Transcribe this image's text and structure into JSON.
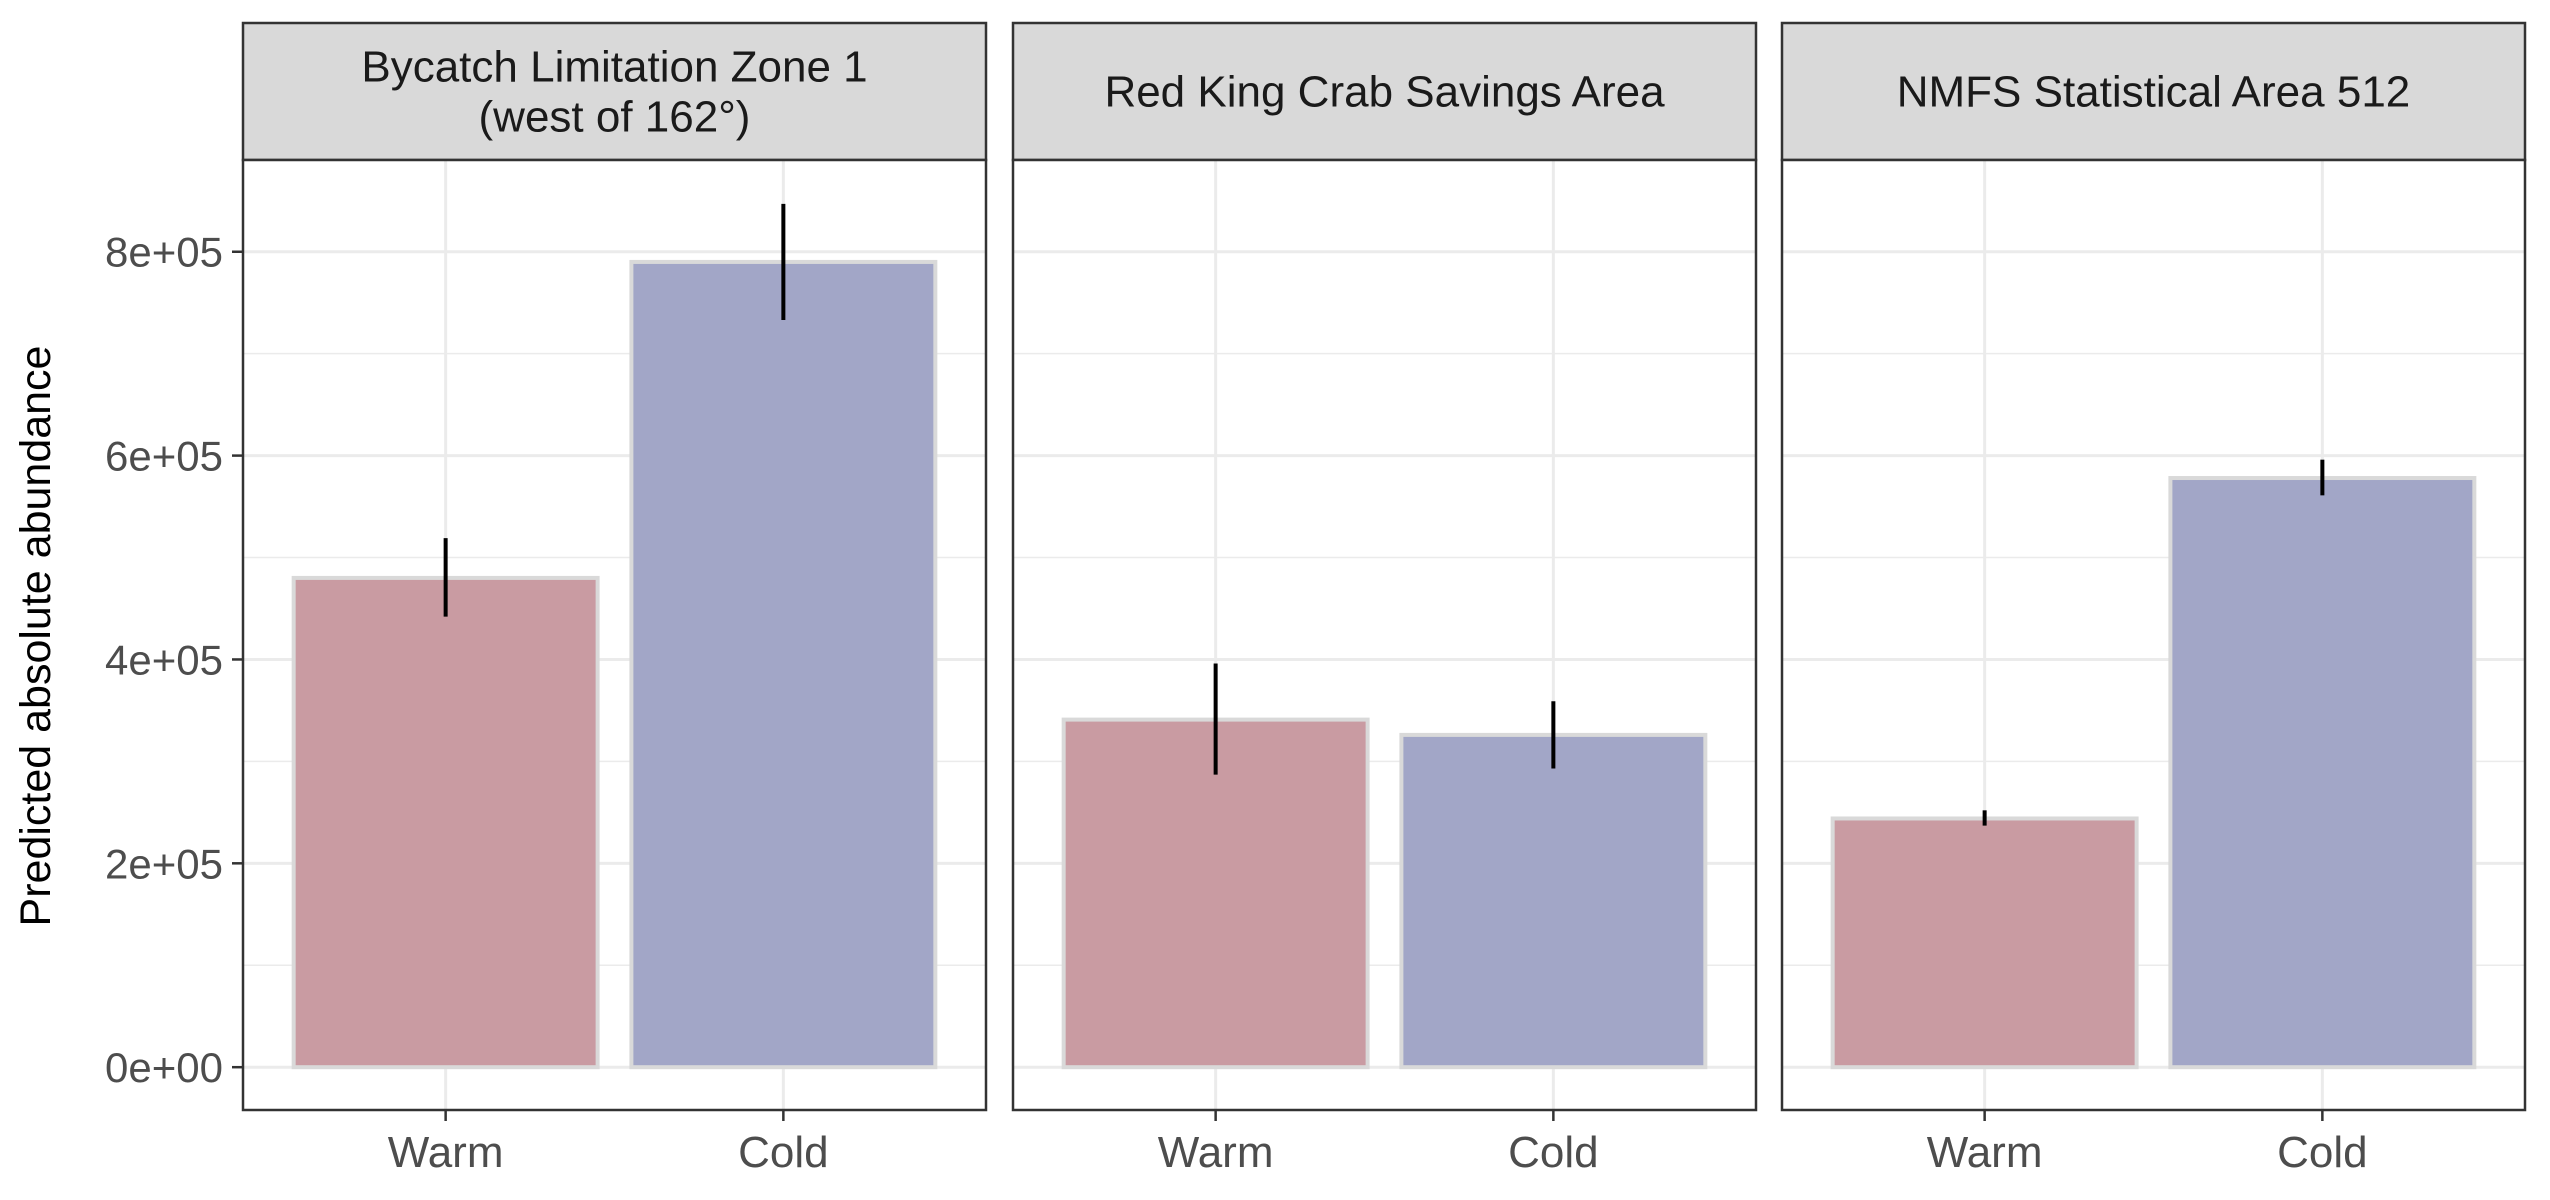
{
  "chart_data": {
    "type": "bar",
    "ylabel": "Predicted absolute abundance",
    "xlabel": "",
    "ylim": [
      -42000,
      890000
    ],
    "y_ticks": [
      0,
      200000,
      400000,
      600000,
      800000
    ],
    "y_tick_labels": [
      "0e+00",
      "2e+05",
      "4e+05",
      "6e+05",
      "8e+05"
    ],
    "categories": [
      "Warm",
      "Cold"
    ],
    "grid": true,
    "legend": "none",
    "colors": {
      "Warm": "#c99ba2",
      "Cold": "#a2a6c7",
      "bar_outline": "#d9d9d9",
      "panel_border": "#333333",
      "strip_fill": "#d9d9d9",
      "grid_major": "#ebebeb",
      "error_bar": "#000000"
    },
    "panels": [
      {
        "title_lines": [
          "Bycatch Limitation Zone 1",
          "(west of 162°)"
        ],
        "values": [
          480000,
          790000
        ],
        "error_low": [
          442000,
          733000
        ],
        "error_high": [
          519000,
          847000
        ]
      },
      {
        "title_lines": [
          "Red King Crab Savings Area"
        ],
        "values": [
          341000,
          326000
        ],
        "error_low": [
          287000,
          293000
        ],
        "error_high": [
          396000,
          359000
        ]
      },
      {
        "title_lines": [
          "NMFS Statistical Area 512"
        ],
        "values": [
          244000,
          578000
        ],
        "error_low": [
          237000,
          561000
        ],
        "error_high": [
          252000,
          596000
        ]
      }
    ]
  }
}
